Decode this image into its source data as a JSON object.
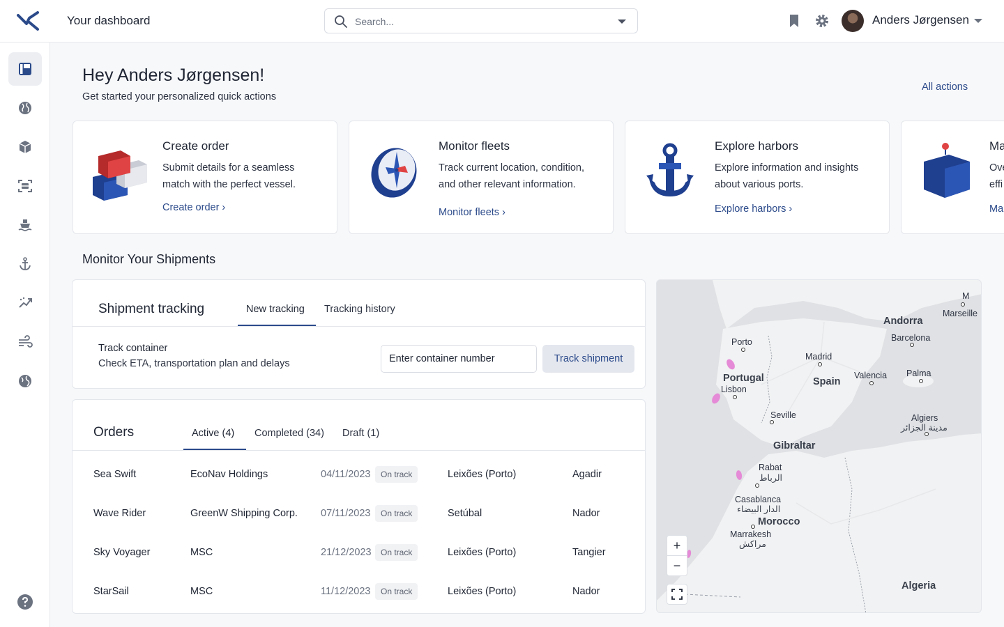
{
  "header": {
    "app_title": "Your dashboard",
    "search_placeholder": "Search...",
    "user_name": "Anders Jørgensen"
  },
  "sidebar": {
    "items": [
      "dashboard",
      "globe",
      "package",
      "scan",
      "ship",
      "anchor",
      "analytics",
      "wind",
      "explore"
    ]
  },
  "greeting": {
    "title": "Hey Anders Jørgensen!",
    "subtitle": "Get started your personalized quick actions",
    "all_actions": "All actions"
  },
  "cards": [
    {
      "title": "Create order",
      "desc": "Submit details for a seamless match with the perfect vessel.",
      "link": "Create order ›"
    },
    {
      "title": "Monitor fleets",
      "desc": "Track current location, condition, and other relevant information.",
      "link": "Monitor fleets ›"
    },
    {
      "title": "Explore harbors",
      "desc": "Explore information and insights about various ports.",
      "link": "Explore harbors ›"
    },
    {
      "title": "Ma",
      "desc": "Ove effi",
      "link": "Ma"
    }
  ],
  "monitor": {
    "section_title": "Monitor Your Shipments",
    "tracking": {
      "title": "Shipment tracking",
      "tabs": [
        "New tracking",
        "Tracking history"
      ],
      "label": "Track container",
      "sub": "Check ETA, transportation plan and delays",
      "input_placeholder": "Enter container number",
      "button": "Track shipment"
    },
    "orders": {
      "title": "Orders",
      "tabs": [
        "Active (4)",
        "Completed (34)",
        "Draft (1)"
      ],
      "rows": [
        {
          "vessel": "Sea Swift",
          "company": "EcoNav Holdings",
          "date": "04/11/2023",
          "status": "On track",
          "origin": "Leixões (Porto)",
          "dest": "Agadir"
        },
        {
          "vessel": "Wave Rider",
          "company": "GreenW Shipping Corp.",
          "date": "07/11/2023",
          "status": "On track",
          "origin": "Setúbal",
          "dest": "Nador"
        },
        {
          "vessel": "Sky Voyager",
          "company": "MSC",
          "date": "21/12/2023",
          "status": "On track",
          "origin": "Leixões (Porto)",
          "dest": "Tangier"
        },
        {
          "vessel": "StarSail",
          "company": "MSC",
          "date": "11/12/2023",
          "status": "On track",
          "origin": "Leixões (Porto)",
          "dest": "Nador"
        }
      ]
    }
  },
  "map": {
    "labels": {
      "andorra": "Andorra",
      "marseille": "Marseille",
      "m": "M",
      "barcelona": "Barcelona",
      "porto": "Porto",
      "madrid": "Madrid",
      "portugal": "Portugal",
      "lisbon": "Lisbon",
      "spain": "Spain",
      "valencia": "Valencia",
      "palma": "Palma",
      "seville": "Seville",
      "algiers": "Algiers",
      "algiers_ar": "مدينة الجزائر",
      "gibraltar": "Gibraltar",
      "rabat": "Rabat",
      "rabat_ar": "الرباط",
      "casablanca": "Casablanca",
      "casablanca_ar": "الدار البيضاء",
      "morocco": "Morocco",
      "marrakesh": "Marrakesh",
      "marrakesh_ar": "مراكش",
      "algeria": "Algeria"
    },
    "zoom_in": "+",
    "zoom_out": "−",
    "colors": {
      "land": "#f1f2f3",
      "sea": "#dfe1e4",
      "marker": "#e58ad6"
    }
  },
  "colors": {
    "accent": "#2b4a8a",
    "illustration_blue": "#1f3f8f",
    "container_red": "#d63a3a"
  }
}
